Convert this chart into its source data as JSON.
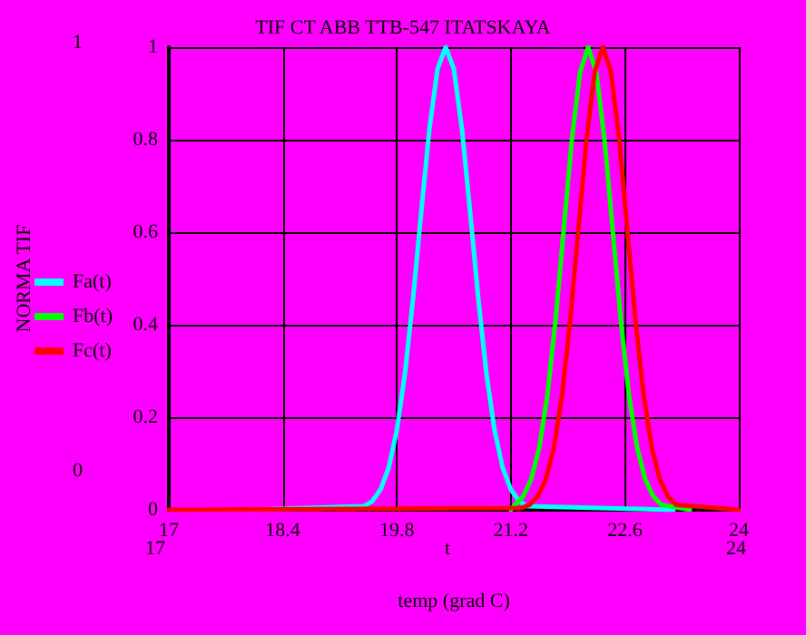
{
  "chart_data": {
    "type": "line",
    "title": "TIF CT ABB TTB-547 ITATSKAYA",
    "xlabel": "temp (grad C)",
    "ylabel": "NORMA TIF",
    "xlim": [
      17,
      24
    ],
    "xticks": [
      17,
      18.4,
      19.8,
      21.2,
      22.6,
      24
    ],
    "ylim": [
      0,
      1
    ],
    "yticks": [
      0,
      0.2,
      0.4,
      0.6,
      0.8,
      1
    ],
    "grid": true,
    "legend": "left",
    "marker": "none",
    "line_style": "solid",
    "annotations": [
      "1",
      "0",
      "17",
      "t",
      "24"
    ],
    "series": [
      {
        "name": "Fa(t)",
        "color": "#00ffff",
        "x": [
          18,
          19.4,
          19.5,
          19.6,
          19.7,
          19.8,
          19.9,
          20.0,
          20.1,
          20.2,
          20.3,
          20.4,
          20.5,
          20.6,
          20.7,
          20.8,
          20.9,
          21.0,
          21.1,
          21.2,
          21.3,
          21.4,
          23.2
        ],
        "values": [
          0,
          0.008,
          0.019,
          0.044,
          0.091,
          0.172,
          0.295,
          0.458,
          0.644,
          0.823,
          0.953,
          1,
          0.953,
          0.823,
          0.644,
          0.458,
          0.295,
          0.172,
          0.091,
          0.044,
          0.019,
          0.008,
          0
        ]
      },
      {
        "name": "Fb(t)",
        "color": "#00ff00",
        "x": [
          21.2,
          21.25,
          21.35,
          21.45,
          21.55,
          21.65,
          21.75,
          21.85,
          21.95,
          22.05,
          22.15,
          22.25,
          22.35,
          22.45,
          22.55,
          22.65,
          22.75,
          22.85,
          22.95,
          23.05,
          23.4
        ],
        "values": [
          0,
          0.011,
          0.029,
          0.066,
          0.135,
          0.249,
          0.411,
          0.607,
          0.801,
          0.946,
          1,
          0.946,
          0.801,
          0.607,
          0.411,
          0.249,
          0.135,
          0.066,
          0.029,
          0.011,
          0
        ]
      },
      {
        "name": "Fc(t)",
        "color": "#ff0000",
        "x": [
          17,
          21.33,
          21.43,
          21.53,
          21.63,
          21.73,
          21.83,
          21.93,
          22.03,
          22.13,
          22.23,
          22.33,
          22.43,
          22.53,
          22.63,
          22.73,
          22.83,
          22.93,
          23.03,
          23.13,
          23.23,
          24
        ],
        "values": [
          0,
          0.004,
          0.011,
          0.029,
          0.066,
          0.135,
          0.249,
          0.411,
          0.607,
          0.801,
          0.946,
          1,
          0.946,
          0.801,
          0.607,
          0.411,
          0.249,
          0.135,
          0.066,
          0.029,
          0.011,
          0
        ]
      }
    ]
  }
}
